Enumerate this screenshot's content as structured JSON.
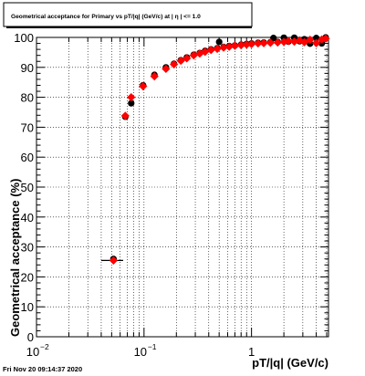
{
  "chart_data": {
    "type": "scatter",
    "title": "Geometrical acceptance for Primary vs pT/|q| (GeV/c) at | η | <= 1.0",
    "xlabel": "pT/|q| (GeV/c)",
    "ylabel": "Geometrical acceptance (%)",
    "timestamp": "Fri Nov 20 09:14:37 2020",
    "x_scale": "log",
    "xlim": [
      0.01,
      5.2
    ],
    "ylim": [
      0,
      100
    ],
    "grid": true,
    "x_ticks": [
      {
        "value": 0.01,
        "label": "10",
        "exp": "−2"
      },
      {
        "value": 0.1,
        "label": "10",
        "exp": "−1"
      },
      {
        "value": 1,
        "label": "1",
        "exp": ""
      }
    ],
    "y_ticks": [
      {
        "value": 0,
        "label": "0"
      },
      {
        "value": 10,
        "label": "10"
      },
      {
        "value": 20,
        "label": "20"
      },
      {
        "value": 30,
        "label": "30"
      },
      {
        "value": 40,
        "label": "40"
      },
      {
        "value": 50,
        "label": "50"
      },
      {
        "value": 60,
        "label": "60"
      },
      {
        "value": 70,
        "label": "70"
      },
      {
        "value": 80,
        "label": "80"
      },
      {
        "value": 90,
        "label": "90"
      },
      {
        "value": 100,
        "label": "100"
      }
    ],
    "colors": {
      "black_series": "#000000",
      "red_series": "#ff0000",
      "errorbar": "#000000"
    },
    "series": [
      {
        "marker": "circle",
        "color": "#000000",
        "points": [
          [
            0.052,
            26
          ],
          [
            0.067,
            73.5
          ],
          [
            0.076,
            78
          ],
          [
            0.098,
            84
          ],
          [
            0.125,
            87.5
          ],
          [
            0.16,
            90
          ],
          [
            0.19,
            91.2
          ],
          [
            0.22,
            92.4
          ],
          [
            0.25,
            93.3
          ],
          [
            0.29,
            94.2
          ],
          [
            0.33,
            94.8
          ],
          [
            0.37,
            95.5
          ],
          [
            0.42,
            96
          ],
          [
            0.48,
            96.4
          ],
          [
            0.5,
            98.5
          ],
          [
            0.55,
            96.8
          ],
          [
            0.62,
            97.1
          ],
          [
            0.7,
            97.3
          ],
          [
            0.8,
            97.6
          ],
          [
            0.9,
            97.8
          ],
          [
            1.0,
            98
          ],
          [
            1.15,
            98.2
          ],
          [
            1.3,
            98.3
          ],
          [
            1.5,
            98.4
          ],
          [
            1.6,
            99.8
          ],
          [
            1.75,
            98.5
          ],
          [
            2.0,
            99.9
          ],
          [
            2.2,
            98.6
          ],
          [
            2.5,
            99.9
          ],
          [
            2.8,
            98.7
          ],
          [
            3.1,
            99.4
          ],
          [
            3.5,
            97.9
          ],
          [
            4.0,
            99.8
          ],
          [
            4.5,
            98.0
          ],
          [
            4.9,
            100
          ]
        ]
      },
      {
        "marker": "diamond",
        "color": "#ff0000",
        "points": [
          [
            0.052,
            25.5
          ],
          [
            0.067,
            73.8
          ],
          [
            0.076,
            80
          ],
          [
            0.098,
            83.7
          ],
          [
            0.125,
            87
          ],
          [
            0.16,
            89.5
          ],
          [
            0.19,
            91
          ],
          [
            0.22,
            92.2
          ],
          [
            0.25,
            93
          ],
          [
            0.29,
            94
          ],
          [
            0.33,
            94.6
          ],
          [
            0.37,
            95.2
          ],
          [
            0.42,
            95.8
          ],
          [
            0.48,
            96.2
          ],
          [
            0.55,
            96.6
          ],
          [
            0.62,
            96.9
          ],
          [
            0.7,
            97.2
          ],
          [
            0.8,
            97.4
          ],
          [
            0.9,
            97.6
          ],
          [
            1.0,
            97.8
          ],
          [
            1.15,
            98
          ],
          [
            1.3,
            98.1
          ],
          [
            1.5,
            98.2
          ],
          [
            1.75,
            98.3
          ],
          [
            2.0,
            98.5
          ],
          [
            2.2,
            98.8
          ],
          [
            2.5,
            98.6
          ],
          [
            2.8,
            99.0
          ],
          [
            3.1,
            98.4
          ],
          [
            3.5,
            99.2
          ],
          [
            4.0,
            98.1
          ],
          [
            4.5,
            99.3
          ],
          [
            4.9,
            99.6
          ]
        ]
      }
    ],
    "x_errors": [
      [
        0.052,
        0.012
      ],
      [
        0.067,
        0.003
      ],
      [
        0.076,
        0.004
      ],
      [
        0.098,
        0.008
      ],
      [
        0.125,
        0.009
      ]
    ]
  }
}
